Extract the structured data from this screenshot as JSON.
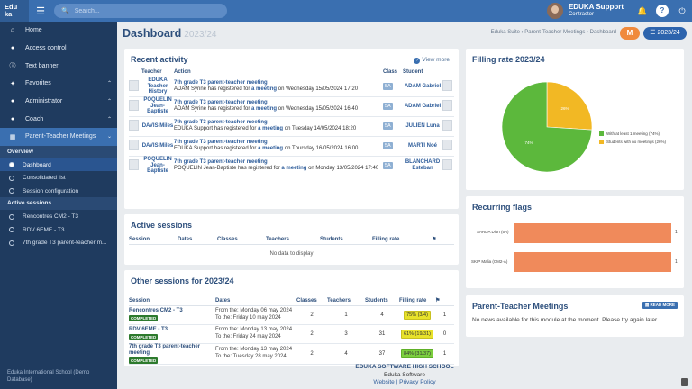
{
  "app": {
    "logo_line1": "Edu",
    "logo_line2": "ka",
    "search_placeholder": "Search...",
    "user_name": "EDUKA Support",
    "user_role": "Contractor"
  },
  "sidebar": {
    "items": [
      {
        "label": "Home",
        "icon": "home-icon",
        "glyph": "⌂"
      },
      {
        "label": "Access control",
        "icon": "users-icon",
        "glyph": "👥"
      },
      {
        "label": "Text banner",
        "icon": "info-icon",
        "glyph": "ℹ"
      },
      {
        "label": "Favorites",
        "icon": "pin-icon",
        "glyph": "📌"
      },
      {
        "label": "Administrator",
        "icon": "user-gear-icon",
        "glyph": "👤"
      },
      {
        "label": "Coach",
        "icon": "user-gear-icon",
        "glyph": "👤"
      },
      {
        "label": "Parent-Teacher Meetings",
        "icon": "meeting-icon",
        "glyph": "👪"
      }
    ],
    "overview_title": "Overview",
    "overview_items": [
      "Dashboard",
      "Consolidated list",
      "Session configuration"
    ],
    "active_title": "Active sessions",
    "active_items": [
      "Rencontres CM2 - T3",
      "RDV 6EME - T3",
      "7th grade T3 parent-teacher m..."
    ],
    "footer": "Eduka International School (Demo Database)"
  },
  "header": {
    "title": "Dashboard",
    "year": "2023/24",
    "breadcrumb": "Eduka Suite › Parent-Teacher Meetings › Dashboard",
    "year_button": "2023/24"
  },
  "recent": {
    "title": "Recent activity",
    "view_more": "View more",
    "columns": [
      "Teacher",
      "Action",
      "Class",
      "Student"
    ],
    "rows": [
      {
        "teacher": "EDUKA Teacher History",
        "a1": "7th grade T3 parent-teacher meeting",
        "a2a": "ADAM Syrine has registered for",
        "a2b": "a meeting",
        "a2c": "on Wednesday 15/05/2024 17:20",
        "cls": "5A",
        "student": "ADAM Gabriel"
      },
      {
        "teacher": "POQUELIN Jean-Baptiste",
        "a1": "7th grade T3 parent-teacher meeting",
        "a2a": "ADAM Syrine has registered for",
        "a2b": "a meeting",
        "a2c": "on Wednesday 15/05/2024 16:40",
        "cls": "5A",
        "student": "ADAM Gabriel"
      },
      {
        "teacher": "DAVIS Miles",
        "a1": "7th grade T3 parent-teacher meeting",
        "a2a": "EDUKA Support has registered for",
        "a2b": "a meeting",
        "a2c": "on Tuesday 14/05/2024 18:20",
        "cls": "5A",
        "student": "JULIEN Luna"
      },
      {
        "teacher": "DAVIS Miles",
        "a1": "7th grade T3 parent-teacher meeting",
        "a2a": "EDUKA Support has registered for",
        "a2b": "a meeting",
        "a2c": "on Thursday 16/05/2024 16:00",
        "cls": "5A",
        "student": "MARTI Noé"
      },
      {
        "teacher": "POQUELIN Jean-Baptiste",
        "a1": "7th grade T3 parent-teacher meeting",
        "a2a": "POQUELIN Jean-Baptiste has registered for",
        "a2b": "a meeting",
        "a2c": "on Monday 13/05/2024 17:40",
        "cls": "5A",
        "student": "BLANCHARD Esteban"
      }
    ]
  },
  "active_sessions": {
    "title": "Active sessions",
    "columns": [
      "Session",
      "Dates",
      "Classes",
      "Teachers",
      "Students",
      "Filling rate"
    ],
    "empty": "No data to display"
  },
  "other_sessions": {
    "title": "Other sessions for 2023/24",
    "columns": [
      "Session",
      "Dates",
      "Classes",
      "Teachers",
      "Students",
      "Filling rate"
    ],
    "rows": [
      {
        "name": "Rencontres CM2 - T3",
        "status": "COMPLETED",
        "from": "From the: Monday 06 may 2024",
        "to": "To the: Friday 10 may 2024",
        "classes": "2",
        "teachers": "1",
        "students": "4",
        "rate": "75% (3/4)",
        "rate_color": "yellow",
        "flags": "1"
      },
      {
        "name": "RDV 6EME - T3",
        "status": "COMPLETED",
        "from": "From the: Monday 13 may 2024",
        "to": "To the: Friday 24 may 2024",
        "classes": "2",
        "teachers": "3",
        "students": "31",
        "rate": "61% (19/31)",
        "rate_color": "yellow",
        "flags": "0"
      },
      {
        "name": "7th grade T3 parent-teacher meeting",
        "status": "COMPLETED",
        "from": "From the: Monday 13 may 2024",
        "to": "To the: Tuesday 28 may 2024",
        "classes": "2",
        "teachers": "4",
        "students": "37",
        "rate": "84% (31/37)",
        "rate_color": "green",
        "flags": "1"
      }
    ]
  },
  "filling": {
    "title": "Filling rate 2023/24",
    "chart_data": {
      "type": "pie",
      "labels": [
        "With at least 1 meeting (74%)",
        "Students with no meetings (26%)"
      ],
      "values": [
        74,
        26
      ],
      "slice_labels": [
        "74%",
        "26%"
      ],
      "colors": [
        "#5cb83c",
        "#f2b824"
      ],
      "legend": "right"
    }
  },
  "flags": {
    "title": "Recurring flags",
    "chart_data": {
      "type": "bar",
      "orientation": "horizontal",
      "categories": [
        "SARDA Dion (5A)",
        "SKIP Malia (CM2-A)"
      ],
      "values": [
        1,
        1
      ],
      "color": "#f08a5b"
    }
  },
  "ptm": {
    "title": "Parent-Teacher Meetings",
    "read_more": "READ MORE",
    "message": "No news available for this module at the moment. Please try again later."
  },
  "footer": {
    "school": "EDUKA SOFTWARE HIGH SCHOOL",
    "software": "Eduka Software",
    "website": "Website",
    "privacy": "Privacy Policy"
  }
}
